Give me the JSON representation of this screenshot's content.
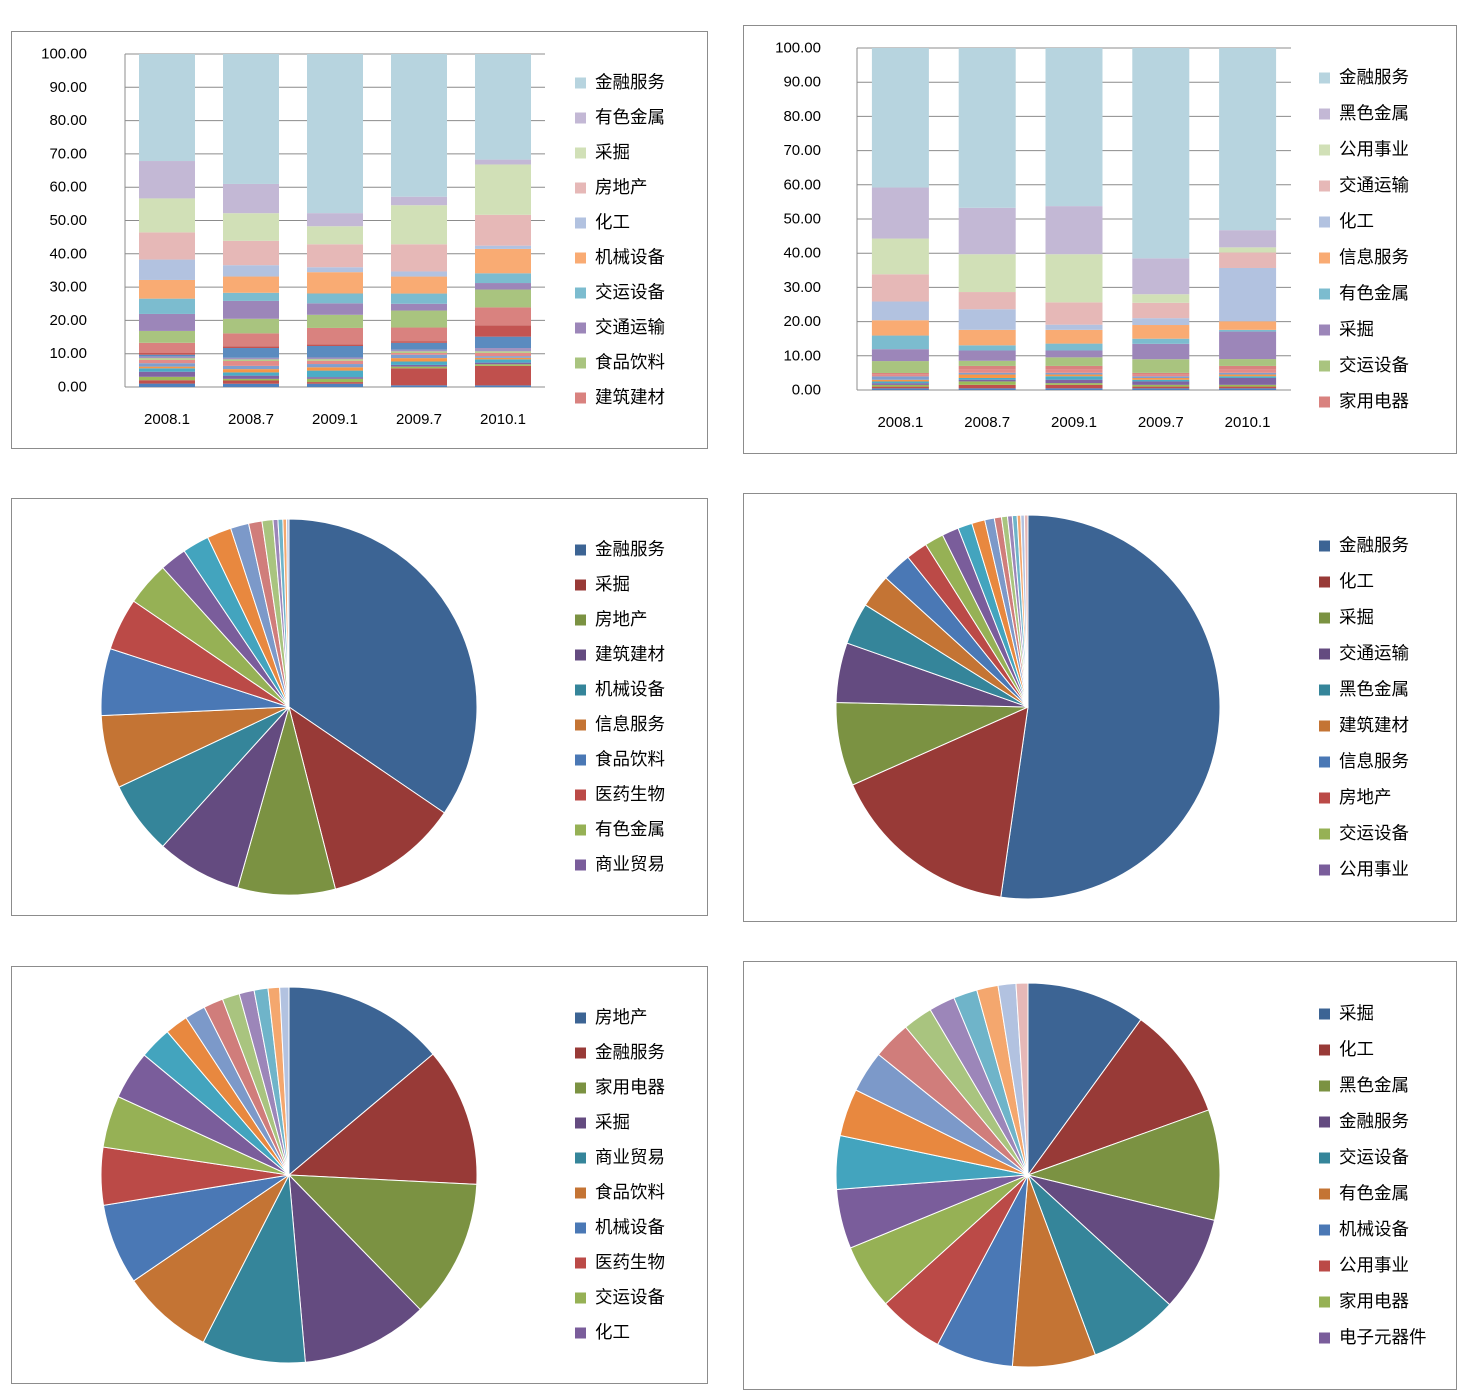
{
  "chart_data": [
    {
      "type": "bar",
      "stacked": "percent",
      "categories": [
        "2008.1",
        "2008.7",
        "2009.1",
        "2009.7",
        "2010.1"
      ],
      "ylim": [
        0,
        100
      ],
      "yticks": [
        "100.00",
        "90.00",
        "80.00",
        "70.00",
        "60.00",
        "50.00",
        "40.00",
        "30.00",
        "20.00",
        "10.00",
        "0.00"
      ],
      "grid": true,
      "legend_position": "right",
      "series": [
        {
          "color": "#4f81bd",
          "values": [
            1,
            1,
            1,
            0.5,
            0.5
          ]
        },
        {
          "color": "#c0504d",
          "values": [
            1,
            1,
            0.5,
            5,
            6
          ]
        },
        {
          "color": "#9bbb59",
          "values": [
            1,
            0.5,
            1,
            0.5,
            0.5
          ]
        },
        {
          "color": "#8064a2",
          "values": [
            1.5,
            1,
            0.5,
            0.5,
            0.5
          ]
        },
        {
          "color": "#4bacc6",
          "values": [
            1,
            1,
            2,
            1,
            1
          ]
        },
        {
          "color": "#f79646",
          "values": [
            0.5,
            1,
            1,
            1,
            0.5
          ]
        },
        {
          "color": "#7f9fce",
          "values": [
            1,
            1,
            1,
            1,
            0.5
          ]
        },
        {
          "color": "#e38b88",
          "values": [
            1,
            1.5,
            1,
            0.5,
            1
          ]
        },
        {
          "color": "#b5cf8a",
          "values": [
            0.5,
            0.5,
            0.5,
            0.5,
            0.5
          ]
        },
        {
          "color": "#a392bf",
          "values": [
            0.5,
            0.5,
            0.5,
            0.5,
            1
          ]
        },
        {
          "color": "#5b8bbf",
          "values": [
            0.5,
            3,
            3.5,
            2,
            3.5
          ]
        },
        {
          "color": "#c35452",
          "values": [
            0.5,
            0.5,
            0.5,
            0.5,
            3.5
          ]
        },
        {
          "name": "建筑建材",
          "color": "#d9827f",
          "values": [
            3,
            4,
            5,
            4,
            5.5
          ]
        },
        {
          "name": "食品饮料",
          "color": "#a9c47f",
          "values": [
            3.5,
            4.5,
            4,
            5,
            5.5
          ]
        },
        {
          "name": "交通运输",
          "color": "#9c86b9",
          "values": [
            5,
            5.5,
            3.5,
            2,
            2
          ]
        },
        {
          "name": "交运设备",
          "color": "#7cbccf",
          "values": [
            4.5,
            2.5,
            3,
            3,
            3
          ]
        },
        {
          "name": "机械设备",
          "color": "#f9ab73",
          "values": [
            5.5,
            5,
            6.5,
            5,
            7.5
          ]
        },
        {
          "name": "化工",
          "color": "#b2c2e0",
          "values": [
            6,
            3.5,
            1.5,
            1.5,
            1
          ]
        },
        {
          "name": "房地产",
          "color": "#e6b8b7",
          "values": [
            8,
            7.5,
            7,
            8,
            9.5
          ]
        },
        {
          "name": "采掘",
          "color": "#d1e0b7",
          "values": [
            10,
            8.5,
            5.5,
            11.5,
            15.5
          ]
        },
        {
          "name": "有色金属",
          "color": "#c3b8d5",
          "values": [
            11,
            9,
            4,
            2.5,
            1.5
          ]
        },
        {
          "name": "金融服务",
          "color": "#b7d4df",
          "values": [
            31.5,
            40,
            48.5,
            42,
            32.5
          ]
        }
      ]
    },
    {
      "type": "bar",
      "stacked": "percent",
      "categories": [
        "2008.1",
        "2008.7",
        "2009.1",
        "2009.7",
        "2010.1"
      ],
      "ylim": [
        0,
        100
      ],
      "yticks": [
        "100.00",
        "90.00",
        "80.00",
        "70.00",
        "60.00",
        "50.00",
        "40.00",
        "30.00",
        "20.00",
        "10.00",
        "0.00"
      ],
      "grid": true,
      "legend_position": "right",
      "series": [
        {
          "color": "#4f81bd",
          "values": [
            0.5,
            0.5,
            0.5,
            0.5,
            0.5
          ]
        },
        {
          "color": "#c0504d",
          "values": [
            0.5,
            1,
            1,
            0.5,
            0.5
          ]
        },
        {
          "color": "#9bbb59",
          "values": [
            0.5,
            1,
            0.5,
            0.5,
            0.5
          ]
        },
        {
          "color": "#8064a2",
          "values": [
            0.5,
            0.5,
            1,
            1,
            2
          ]
        },
        {
          "color": "#4bacc6",
          "values": [
            0.5,
            0.5,
            1,
            0.5,
            0.5
          ]
        },
        {
          "color": "#f79646",
          "values": [
            0.5,
            1,
            0.5,
            0.5,
            0.5
          ]
        },
        {
          "color": "#7f9fce",
          "values": [
            1,
            0.5,
            0.5,
            0.5,
            0.5
          ]
        },
        {
          "color": "#e38b88",
          "values": [
            0.5,
            1,
            1,
            0.5,
            1
          ]
        },
        {
          "name": "家用电器",
          "color": "#d9827f",
          "values": [
            0.5,
            1,
            1,
            0.5,
            1
          ]
        },
        {
          "name": "交运设备",
          "color": "#a9c47f",
          "values": [
            3.5,
            1.5,
            2.5,
            4,
            2
          ]
        },
        {
          "name": "采掘",
          "color": "#9c86b9",
          "values": [
            3.5,
            3,
            2,
            4.5,
            8
          ]
        },
        {
          "name": "有色金属",
          "color": "#7cbccf",
          "values": [
            4,
            1.5,
            2,
            1.5,
            0.5
          ]
        },
        {
          "name": "信息服务",
          "color": "#f9ab73",
          "values": [
            4.5,
            4.5,
            4,
            4,
            2.5
          ]
        },
        {
          "name": "化工",
          "color": "#b2c2e0",
          "values": [
            5.5,
            6,
            1.5,
            2,
            15.5
          ]
        },
        {
          "name": "交通运输",
          "color": "#e6b8b7",
          "values": [
            8,
            5,
            6.5,
            4.5,
            4.5
          ]
        },
        {
          "name": "公用事业",
          "color": "#d1e0b7",
          "values": [
            10.5,
            11,
            14,
            2.5,
            1.5
          ]
        },
        {
          "name": "黑色金属",
          "color": "#c3b8d5",
          "values": [
            15,
            13.5,
            14,
            10.5,
            5
          ]
        },
        {
          "name": "金融服务",
          "color": "#b7d4df",
          "values": [
            41,
            46.5,
            46,
            61.5,
            53
          ]
        }
      ]
    },
    {
      "type": "pie",
      "legend_position": "right",
      "slices": [
        {
          "name": "金融服务",
          "value": 33,
          "color": "#3c6494"
        },
        {
          "name": "采掘",
          "value": 11,
          "color": "#983a37"
        },
        {
          "name": "房地产",
          "value": 8,
          "color": "#7b9242"
        },
        {
          "name": "建筑建材",
          "value": 7,
          "color": "#644b80"
        },
        {
          "name": "机械设备",
          "value": 6,
          "color": "#35859a"
        },
        {
          "name": "信息服务",
          "value": 6,
          "color": "#c47434"
        },
        {
          "name": "食品饮料",
          "value": 5.5,
          "color": "#4a78b5"
        },
        {
          "name": "医药生物",
          "value": 4.3,
          "color": "#bb4a47"
        },
        {
          "name": "有色金属",
          "value": 3.6,
          "color": "#96b155"
        },
        {
          "name": "商业贸易",
          "value": 2.2,
          "color": "#7a5d9b"
        },
        {
          "value": 2.2,
          "color": "#43a4be"
        },
        {
          "value": 2.0,
          "color": "#e8883f"
        },
        {
          "value": 1.5,
          "color": "#7c99c9"
        },
        {
          "value": 1.1,
          "color": "#d07d7b"
        },
        {
          "value": 0.9,
          "color": "#a9c47f"
        },
        {
          "value": 0.4,
          "color": "#9c86b9"
        },
        {
          "value": 0.4,
          "color": "#6fb4c9"
        },
        {
          "value": 0.3,
          "color": "#f4a76e"
        },
        {
          "value": 0.2,
          "color": "#b2c2e0"
        }
      ]
    },
    {
      "type": "pie",
      "legend_position": "right",
      "slices": [
        {
          "name": "金融服务",
          "value": 52,
          "color": "#3c6494"
        },
        {
          "name": "化工",
          "value": 16,
          "color": "#983a37"
        },
        {
          "name": "采掘",
          "value": 7,
          "color": "#7b9242"
        },
        {
          "name": "交通运输",
          "value": 5,
          "color": "#644b80"
        },
        {
          "name": "黑色金属",
          "value": 3.5,
          "color": "#35859a"
        },
        {
          "name": "建筑建材",
          "value": 2.8,
          "color": "#c47434"
        },
        {
          "name": "信息服务",
          "value": 2.5,
          "color": "#4a78b5"
        },
        {
          "name": "房地产",
          "value": 1.8,
          "color": "#bb4a47"
        },
        {
          "name": "交运设备",
          "value": 1.6,
          "color": "#96b155"
        },
        {
          "name": "公用事业",
          "value": 1.4,
          "color": "#7a5d9b"
        },
        {
          "value": 1.2,
          "color": "#43a4be"
        },
        {
          "value": 1.1,
          "color": "#e8883f"
        },
        {
          "value": 0.8,
          "color": "#7c99c9"
        },
        {
          "value": 0.6,
          "color": "#d07d7b"
        },
        {
          "value": 0.5,
          "color": "#a9c47f"
        },
        {
          "value": 0.4,
          "color": "#9c86b9"
        },
        {
          "value": 0.4,
          "color": "#6fb4c9"
        },
        {
          "value": 0.3,
          "color": "#f4a76e"
        },
        {
          "value": 0.3,
          "color": "#b2c2e0"
        },
        {
          "value": 0.3,
          "color": "#e6b8b7"
        }
      ]
    },
    {
      "type": "pie",
      "legend_position": "right",
      "slices": [
        {
          "name": "房地产",
          "value": 14,
          "color": "#3c6494"
        },
        {
          "name": "金融服务",
          "value": 12,
          "color": "#983a37"
        },
        {
          "name": "家用电器",
          "value": 12,
          "color": "#7b9242"
        },
        {
          "name": "采掘",
          "value": 11,
          "color": "#644b80"
        },
        {
          "name": "商业贸易",
          "value": 9,
          "color": "#35859a"
        },
        {
          "name": "食品饮料",
          "value": 8,
          "color": "#c47434"
        },
        {
          "name": "机械设备",
          "value": 7,
          "color": "#4a78b5"
        },
        {
          "name": "医药生物",
          "value": 5,
          "color": "#bb4a47"
        },
        {
          "name": "交运设备",
          "value": 4.5,
          "color": "#96b155"
        },
        {
          "name": "化工",
          "value": 4.2,
          "color": "#7a5d9b"
        },
        {
          "value": 2.8,
          "color": "#43a4be"
        },
        {
          "value": 2.0,
          "color": "#e8883f"
        },
        {
          "value": 1.8,
          "color": "#7c99c9"
        },
        {
          "value": 1.7,
          "color": "#d07d7b"
        },
        {
          "value": 1.5,
          "color": "#a9c47f"
        },
        {
          "value": 1.3,
          "color": "#9c86b9"
        },
        {
          "value": 1.2,
          "color": "#6fb4c9"
        },
        {
          "value": 1.0,
          "color": "#f4a76e"
        },
        {
          "value": 0.8,
          "color": "#b2c2e0"
        }
      ]
    },
    {
      "type": "pie",
      "legend_position": "right",
      "slices": [
        {
          "name": "采掘",
          "value": 10,
          "color": "#3c6494"
        },
        {
          "name": "化工",
          "value": 9.5,
          "color": "#983a37"
        },
        {
          "name": "黑色金属",
          "value": 9.3,
          "color": "#7b9242"
        },
        {
          "name": "金融服务",
          "value": 8,
          "color": "#644b80"
        },
        {
          "name": "交运设备",
          "value": 7.5,
          "color": "#35859a"
        },
        {
          "name": "有色金属",
          "value": 7,
          "color": "#c47434"
        },
        {
          "name": "机械设备",
          "value": 6.5,
          "color": "#4a78b5"
        },
        {
          "name": "公用事业",
          "value": 5.5,
          "color": "#bb4a47"
        },
        {
          "name": "家用电器",
          "value": 5.5,
          "color": "#96b155"
        },
        {
          "name": "电子元器件",
          "value": 5,
          "color": "#7a5d9b"
        },
        {
          "value": 4.5,
          "color": "#43a4be"
        },
        {
          "value": 4,
          "color": "#e8883f"
        },
        {
          "value": 3.5,
          "color": "#7c99c9"
        },
        {
          "value": 3.2,
          "color": "#d07d7b"
        },
        {
          "value": 2.5,
          "color": "#a9c47f"
        },
        {
          "value": 2.2,
          "color": "#9c86b9"
        },
        {
          "value": 2.0,
          "color": "#6fb4c9"
        },
        {
          "value": 1.8,
          "color": "#f4a76e"
        },
        {
          "value": 1.5,
          "color": "#b2c2e0"
        },
        {
          "value": 1.0,
          "color": "#e6b8b7"
        }
      ]
    }
  ]
}
